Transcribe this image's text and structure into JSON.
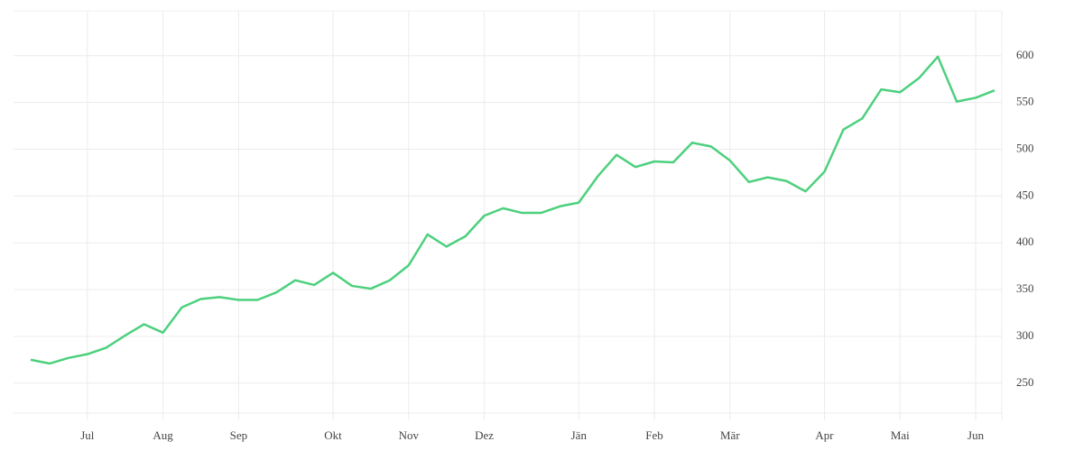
{
  "chart_data": {
    "type": "line",
    "categories": [
      null,
      null,
      null,
      "Jul",
      null,
      null,
      null,
      "Aug",
      null,
      null,
      null,
      "Sep",
      null,
      null,
      null,
      null,
      "Okt",
      null,
      null,
      null,
      "Nov",
      null,
      null,
      null,
      "Dez",
      null,
      null,
      null,
      null,
      "Jän",
      null,
      null,
      null,
      "Feb",
      null,
      null,
      null,
      "Mär",
      null,
      null,
      null,
      null,
      "Apr",
      null,
      null,
      null,
      "Mai",
      null,
      null,
      null,
      "Jun",
      null
    ],
    "values": [
      275,
      271,
      277,
      281,
      288,
      301,
      313,
      304,
      331,
      340,
      342,
      339,
      339,
      347,
      360,
      355,
      368,
      354,
      351,
      360,
      376,
      409,
      396,
      407,
      429,
      437,
      432,
      432,
      439,
      443,
      471,
      494,
      481,
      487,
      486,
      507,
      503,
      488,
      465,
      470,
      466,
      455,
      476,
      521,
      533,
      564,
      561,
      576,
      599,
      551,
      555,
      563
    ],
    "color": "#4cd07d",
    "ylim": [
      218,
      648
    ],
    "yticks": [
      250,
      300,
      350,
      400,
      450,
      500,
      550,
      600
    ],
    "grid": true
  }
}
